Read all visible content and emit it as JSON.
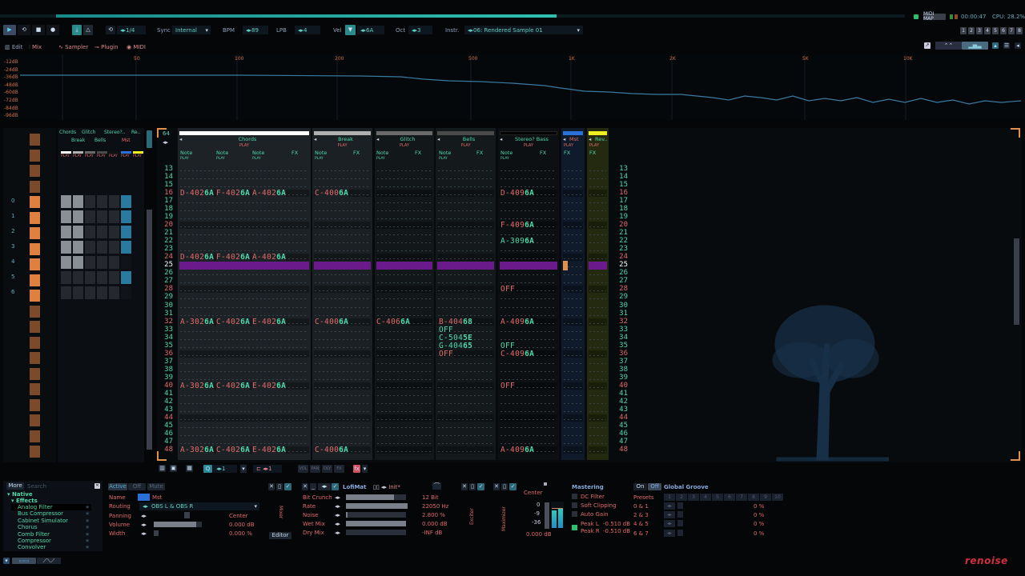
{
  "topbar": {
    "midi_map": "MIDI MAP",
    "time": "00:00:47",
    "cpu": "CPU: 28.2%",
    "song_progress": 0.59,
    "numbers": [
      "1",
      "2",
      "3",
      "4",
      "5",
      "6",
      "7",
      "8"
    ]
  },
  "transport": {
    "quant": "1/4",
    "sync_label": "Sync",
    "sync": "Internal",
    "bpm_label": "BPM",
    "bpm": "89",
    "lpb_label": "LPB",
    "lpb": "4",
    "vel_label": "Vel",
    "vel": "6A",
    "oct_label": "Oct",
    "oct": "3",
    "instr_label": "Instr.",
    "instr": "06: Rendered Sample 01"
  },
  "views": {
    "edit": "Edit",
    "mix": "Mix",
    "sampler": "Sampler",
    "plugin": "Plugin",
    "midi": "MIDI"
  },
  "spectrum": {
    "db_labels": [
      "-12dB",
      "-24dB",
      "-36dB",
      "-48dB",
      "-60dB",
      "-72dB",
      "-84dB",
      "-96dB"
    ],
    "freq_labels": [
      "50",
      "100",
      "200",
      "500",
      "1K",
      "2K",
      "5K",
      "10K"
    ]
  },
  "sequencer": {
    "track_names_top": [
      "Chords",
      "Glitch",
      "Stereo?..",
      "Re.."
    ],
    "track_names_bottom": [
      "Break",
      "Bells",
      "Mst"
    ],
    "play": "PLAY",
    "row_labels": [
      "0",
      "1",
      "2",
      "3",
      "4",
      "5",
      "6"
    ]
  },
  "pattern": {
    "lines": "64",
    "first_row": 13,
    "last_row": 48,
    "current_row": 25,
    "tracks": [
      {
        "name": "Chords",
        "color": "#ffffff",
        "cols": [
          "Note",
          "Note",
          "Note",
          "FX"
        ],
        "play": "PLAY"
      },
      {
        "name": "Break",
        "color": "#b0b0b0",
        "cols": [
          "Note",
          "FX"
        ],
        "play": "PLAY"
      },
      {
        "name": "Glitch",
        "color": "#6a6a6a",
        "cols": [
          "Note",
          "FX"
        ],
        "play": "PLAY"
      },
      {
        "name": "Bells",
        "color": "#4a4a4a",
        "cols": [
          "Note",
          "FX"
        ],
        "play": "PLAY"
      },
      {
        "name": "Stereo? Bass",
        "color": "#050505",
        "cols": [
          "Note",
          "FX"
        ],
        "play": "PLAY"
      },
      {
        "name": "Mst",
        "color": "#2a70d8",
        "cols": [
          "FX"
        ],
        "play": "PLAY"
      },
      {
        "name": "Rev..",
        "color": "#f0f020",
        "cols": [
          "FX"
        ],
        "play": "PLAY"
      }
    ],
    "notes": [
      {
        "row": 16,
        "track": 0,
        "col": 0,
        "note": "D-4",
        "inst": "02",
        "vol": "6A"
      },
      {
        "row": 16,
        "track": 0,
        "col": 1,
        "note": "F-4",
        "inst": "02",
        "vol": "6A"
      },
      {
        "row": 16,
        "track": 0,
        "col": 2,
        "note": "A-4",
        "inst": "02",
        "vol": "6A"
      },
      {
        "row": 16,
        "track": 1,
        "col": 0,
        "note": "C-4",
        "inst": "00",
        "vol": "6A"
      },
      {
        "row": 16,
        "track": 4,
        "col": 0,
        "note": "D-4",
        "inst": "09",
        "vol": "6A"
      },
      {
        "row": 20,
        "track": 4,
        "col": 0,
        "note": "F-4",
        "inst": "09",
        "vol": "6A"
      },
      {
        "row": 22,
        "track": 4,
        "col": 0,
        "note": "A-3",
        "inst": "09",
        "vol": "6A"
      },
      {
        "row": 24,
        "track": 0,
        "col": 0,
        "note": "D-4",
        "inst": "02",
        "vol": "6A"
      },
      {
        "row": 24,
        "track": 0,
        "col": 1,
        "note": "F-4",
        "inst": "02",
        "vol": "6A"
      },
      {
        "row": 24,
        "track": 0,
        "col": 2,
        "note": "A-4",
        "inst": "02",
        "vol": "6A"
      },
      {
        "row": 28,
        "track": 4,
        "col": 0,
        "note": "OFF",
        "inst": "",
        "vol": ""
      },
      {
        "row": 32,
        "track": 0,
        "col": 0,
        "note": "A-3",
        "inst": "02",
        "vol": "6A"
      },
      {
        "row": 32,
        "track": 0,
        "col": 1,
        "note": "C-4",
        "inst": "02",
        "vol": "6A"
      },
      {
        "row": 32,
        "track": 0,
        "col": 2,
        "note": "E-4",
        "inst": "02",
        "vol": "6A"
      },
      {
        "row": 32,
        "track": 1,
        "col": 0,
        "note": "C-4",
        "inst": "00",
        "vol": "6A"
      },
      {
        "row": 32,
        "track": 2,
        "col": 0,
        "note": "C-4",
        "inst": "06",
        "vol": "6A"
      },
      {
        "row": 32,
        "track": 3,
        "col": 0,
        "note": "B-4",
        "inst": "04",
        "vol": "68"
      },
      {
        "row": 32,
        "track": 4,
        "col": 0,
        "note": "A-4",
        "inst": "09",
        "vol": "6A"
      },
      {
        "row": 33,
        "track": 3,
        "col": 0,
        "note": "OFF",
        "inst": "",
        "vol": ""
      },
      {
        "row": 34,
        "track": 3,
        "col": 0,
        "note": "C-5",
        "inst": "04",
        "vol": "5E"
      },
      {
        "row": 35,
        "track": 3,
        "col": 0,
        "note": "G-4",
        "inst": "04",
        "vol": "65"
      },
      {
        "row": 35,
        "track": 4,
        "col": 0,
        "note": "OFF",
        "inst": "",
        "vol": ""
      },
      {
        "row": 36,
        "track": 3,
        "col": 0,
        "note": "OFF",
        "inst": "",
        "vol": ""
      },
      {
        "row": 36,
        "track": 4,
        "col": 0,
        "note": "C-4",
        "inst": "09",
        "vol": "6A"
      },
      {
        "row": 40,
        "track": 0,
        "col": 0,
        "note": "A-3",
        "inst": "02",
        "vol": "6A"
      },
      {
        "row": 40,
        "track": 0,
        "col": 1,
        "note": "C-4",
        "inst": "02",
        "vol": "6A"
      },
      {
        "row": 40,
        "track": 0,
        "col": 2,
        "note": "E-4",
        "inst": "02",
        "vol": "6A"
      },
      {
        "row": 40,
        "track": 4,
        "col": 0,
        "note": "OFF",
        "inst": "",
        "vol": ""
      },
      {
        "row": 48,
        "track": 0,
        "col": 0,
        "note": "A-3",
        "inst": "02",
        "vol": "6A"
      },
      {
        "row": 48,
        "track": 0,
        "col": 1,
        "note": "C-4",
        "inst": "02",
        "vol": "6A"
      },
      {
        "row": 48,
        "track": 0,
        "col": 2,
        "note": "E-4",
        "inst": "02",
        "vol": "6A"
      },
      {
        "row": 48,
        "track": 1,
        "col": 0,
        "note": "C-4",
        "inst": "00",
        "vol": "6A"
      },
      {
        "row": 48,
        "track": 4,
        "col": 0,
        "note": "A-4",
        "inst": "09",
        "vol": "6A"
      }
    ]
  },
  "pattern_toolbar": {
    "step": "1",
    "edit_step": "1",
    "vol": "VOL",
    "pan": "PAN",
    "dly": "DLY",
    "fx": "FX"
  },
  "browser": {
    "more": "More",
    "search_placeholder": "Search",
    "root": "▾ Native",
    "group": "▾ Effects",
    "items": [
      "Analog Filter",
      "Bus Compressor",
      "Cabinet Simulator",
      "Chorus",
      "Comb Filter",
      "Compressor",
      "Convolver"
    ]
  },
  "track_dsp": {
    "active": "Active",
    "off": "Off",
    "mute": "Mute",
    "name_label": "Name",
    "name": "Mst",
    "routing_label": "Routing",
    "routing": "OBS L & OBS R",
    "panning_label": "Panning",
    "panning": "Center",
    "volume_label": "Volume",
    "volume": "0.000 dB",
    "volume_level": 0.88,
    "width_label": "Width",
    "width": "0.000 %",
    "mixer_label": "Mixer",
    "editor": "Editor"
  },
  "lofimat": {
    "name": "LofiMat",
    "preset": "Init*",
    "params": [
      {
        "label": "Bit Crunch",
        "value": "12 Bit",
        "level": 0.8
      },
      {
        "label": "Rate",
        "value": "22050 Hz",
        "level": 1.0
      },
      {
        "label": "Noise",
        "value": "2.800 %",
        "level": 0.03
      },
      {
        "label": "Wet Mix",
        "value": "0.000 dB",
        "level": 1.0
      },
      {
        "label": "Dry Mix",
        "value": "-INF dB",
        "level": 0.0
      }
    ]
  },
  "devices": {
    "exciter": "Exciter",
    "maximizer": "Maximizer"
  },
  "master": {
    "pan": "Center",
    "db_scale": [
      "0",
      "-9",
      "-36"
    ],
    "volume": "0.000 dB",
    "mastering": "Mastering",
    "dc_filter": "DC Filter",
    "soft_clipping": "Soft Clipping",
    "auto_gain": "Auto Gain",
    "peak_l_label": "Peak L",
    "peak_l": "-0.510 dB",
    "peak_r_label": "Peak R",
    "peak_r": "-0.510 dB"
  },
  "groove": {
    "on": "On",
    "off": "Off",
    "title": "Global Groove",
    "presets": "Presets",
    "numbers": [
      "1",
      "2",
      "3",
      "4",
      "5",
      "6",
      "7",
      "8",
      "9",
      "10"
    ],
    "rows": [
      {
        "label": "0 & 1",
        "value": "0 %"
      },
      {
        "label": "2 & 3",
        "value": "0 %"
      },
      {
        "label": "4 & 5",
        "value": "0 %"
      },
      {
        "label": "6 & 7",
        "value": "0 %"
      }
    ]
  },
  "logo": "renoise"
}
